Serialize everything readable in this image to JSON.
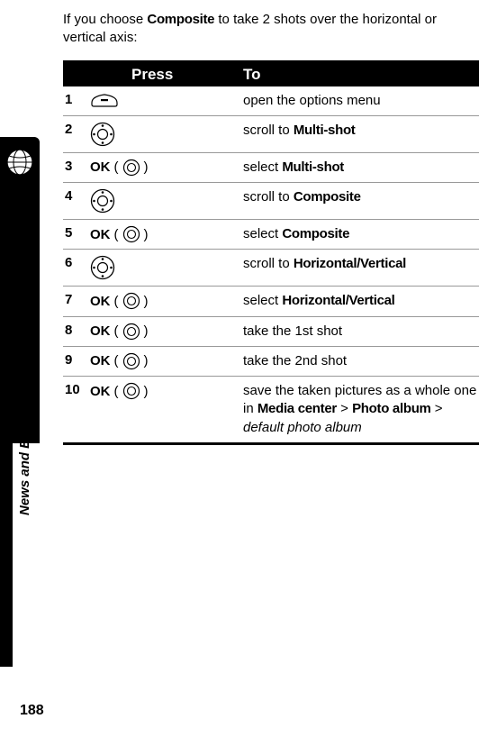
{
  "intro": {
    "prefix": "If you choose ",
    "bold": "Composite",
    "suffix": " to take 2 shots over the horizontal or vertical axis:"
  },
  "header": {
    "press": "Press",
    "to": "To"
  },
  "rows": [
    {
      "num": "1",
      "icon": "softkey",
      "desc_plain": "open the options menu"
    },
    {
      "num": "2",
      "icon": "nav",
      "desc_prefix": "scroll to ",
      "desc_bold": "Multi-shot"
    },
    {
      "num": "3",
      "icon": "ok",
      "ok": "OK",
      "desc_prefix": "select ",
      "desc_bold": "Multi-shot"
    },
    {
      "num": "4",
      "icon": "nav",
      "desc_prefix": "scroll to ",
      "desc_bold": "Composite"
    },
    {
      "num": "5",
      "icon": "ok",
      "ok": "OK",
      "desc_prefix": "select ",
      "desc_bold": "Composite"
    },
    {
      "num": "6",
      "icon": "nav",
      "desc_prefix": "scroll to ",
      "desc_bold": "Horizontal/Vertical"
    },
    {
      "num": "7",
      "icon": "ok",
      "ok": "OK",
      "desc_prefix": "select ",
      "desc_bold": "Horizontal/Vertical"
    },
    {
      "num": "8",
      "icon": "ok",
      "ok": "OK",
      "desc_plain": "take the 1st shot"
    },
    {
      "num": "9",
      "icon": "ok",
      "ok": "OK",
      "desc_plain": "take the 2nd shot"
    },
    {
      "num": "10",
      "icon": "ok",
      "ok": "OK",
      "desc_prefix": "save the taken pictures as a whole one in ",
      "desc_bold": "Media center",
      "desc_mid": " > ",
      "desc_bold2": "Photo album",
      "desc_mid2": " > ",
      "desc_italic": "default photo album"
    }
  ],
  "side_label": "News and Entertainment",
  "page_number": "188",
  "paren_open": "(",
  "paren_close": ")"
}
